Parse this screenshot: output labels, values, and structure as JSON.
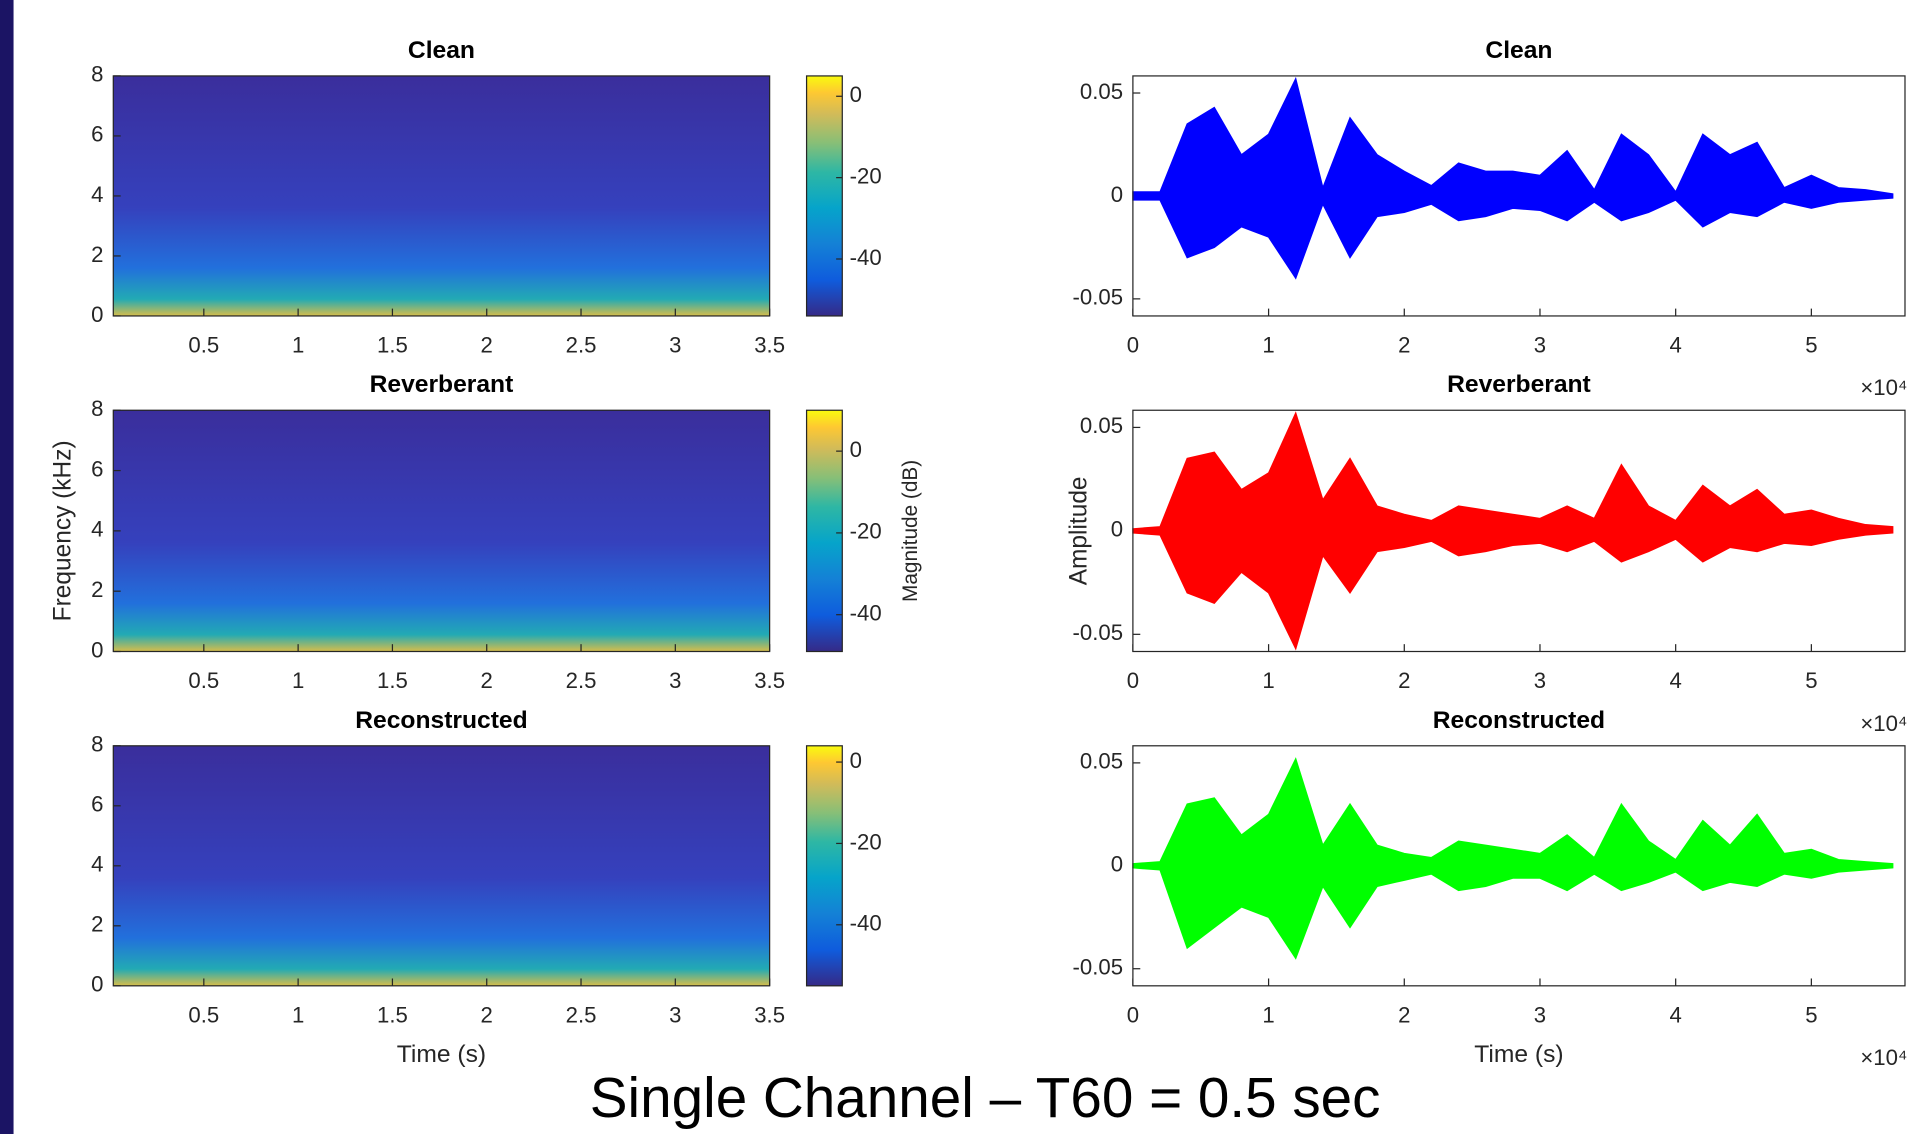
{
  "title": "Single Channel – T60 = 0.5 sec",
  "chart_data": [
    {
      "type": "spectrogram",
      "title": "Clean",
      "xlim": [
        0.02,
        3.5
      ],
      "xticks": [
        0.5,
        1,
        1.5,
        2,
        2.5,
        3,
        3.5
      ],
      "ylim": [
        0,
        8
      ],
      "yticks": [
        0,
        2,
        4,
        6,
        8
      ],
      "clim": [
        -54,
        5
      ],
      "cticks": [
        0,
        -20,
        -40
      ]
    },
    {
      "type": "spectrogram",
      "title": "Reverberant",
      "ylabel": "Frequency (kHz)",
      "clabel": "Magnitude (dB)",
      "xlim": [
        0.02,
        3.5
      ],
      "xticks": [
        0.5,
        1,
        1.5,
        2,
        2.5,
        3,
        3.5
      ],
      "ylim": [
        0,
        8
      ],
      "yticks": [
        0,
        2,
        4,
        6,
        8
      ],
      "clim": [
        -49,
        10
      ],
      "cticks": [
        0,
        -20,
        -40
      ]
    },
    {
      "type": "spectrogram",
      "title": "Reconstructed",
      "xlabel": "Time (s)",
      "xlim": [
        0.02,
        3.5
      ],
      "xticks": [
        0.5,
        1,
        1.5,
        2,
        2.5,
        3,
        3.5
      ],
      "ylim": [
        0,
        8
      ],
      "yticks": [
        0,
        2,
        4,
        6,
        8
      ],
      "clim": [
        -55,
        4
      ],
      "cticks": [
        0,
        -20,
        -40
      ]
    },
    {
      "type": "waveform",
      "title": "Clean",
      "color": "#0000ff",
      "x_multiplier": "×10⁴",
      "xlim": [
        0,
        56900
      ],
      "xticks": [
        0,
        {
          "value": 10000,
          "label": "1"
        },
        {
          "value": 20000,
          "label": "2"
        },
        {
          "value": 30000,
          "label": "3"
        },
        {
          "value": 40000,
          "label": "4"
        },
        {
          "value": 50000,
          "label": "5"
        }
      ],
      "ylim": [
        -0.0583,
        0.0583
      ],
      "yticks": [
        -0.05,
        0,
        0.05
      ],
      "x": [
        0,
        2000,
        4000,
        6000,
        8000,
        10000,
        12000,
        14000,
        16000,
        18000,
        20000,
        22000,
        24000,
        26000,
        28000,
        30000,
        32000,
        34000,
        36000,
        38000,
        40000,
        42000,
        44000,
        46000,
        48000,
        50000,
        52000,
        54000,
        56000
      ],
      "upper": [
        0.002,
        0.002,
        0.035,
        0.043,
        0.02,
        0.03,
        0.057,
        0.004,
        0.038,
        0.02,
        0.012,
        0.005,
        0.016,
        0.012,
        0.012,
        0.01,
        0.022,
        0.003,
        0.03,
        0.02,
        0.002,
        0.03,
        0.02,
        0.026,
        0.004,
        0.01,
        0.004,
        0.003,
        0.001
      ],
      "lower": [
        -0.002,
        -0.002,
        -0.03,
        -0.025,
        -0.015,
        -0.02,
        -0.04,
        -0.004,
        -0.03,
        -0.01,
        -0.008,
        -0.004,
        -0.012,
        -0.01,
        -0.006,
        -0.007,
        -0.012,
        -0.003,
        -0.012,
        -0.008,
        -0.002,
        -0.015,
        -0.008,
        -0.01,
        -0.003,
        -0.006,
        -0.003,
        -0.002,
        -0.001
      ]
    },
    {
      "type": "waveform",
      "title": "Reverberant",
      "ylabel": "Amplitude",
      "color": "#ff0000",
      "x_multiplier": "×10⁴",
      "xlim": [
        0,
        56900
      ],
      "xticks": [
        0,
        {
          "value": 10000,
          "label": "1"
        },
        {
          "value": 20000,
          "label": "2"
        },
        {
          "value": 30000,
          "label": "3"
        },
        {
          "value": 40000,
          "label": "4"
        },
        {
          "value": 50000,
          "label": "5"
        }
      ],
      "ylim": [
        -0.0583,
        0.0583
      ],
      "yticks": [
        -0.05,
        0,
        0.05
      ],
      "x": [
        0,
        2000,
        4000,
        6000,
        8000,
        10000,
        12000,
        14000,
        16000,
        18000,
        20000,
        22000,
        24000,
        26000,
        28000,
        30000,
        32000,
        34000,
        36000,
        38000,
        40000,
        42000,
        44000,
        46000,
        48000,
        50000,
        52000,
        54000,
        56000
      ],
      "upper": [
        0.001,
        0.002,
        0.035,
        0.038,
        0.02,
        0.028,
        0.057,
        0.015,
        0.035,
        0.012,
        0.008,
        0.005,
        0.012,
        0.01,
        0.008,
        0.006,
        0.012,
        0.006,
        0.032,
        0.012,
        0.005,
        0.022,
        0.012,
        0.02,
        0.008,
        0.01,
        0.006,
        0.003,
        0.002
      ],
      "lower": [
        -0.001,
        -0.002,
        -0.03,
        -0.035,
        -0.02,
        -0.03,
        -0.057,
        -0.012,
        -0.03,
        -0.01,
        -0.008,
        -0.005,
        -0.012,
        -0.01,
        -0.007,
        -0.006,
        -0.01,
        -0.005,
        -0.015,
        -0.01,
        -0.004,
        -0.015,
        -0.008,
        -0.01,
        -0.006,
        -0.007,
        -0.004,
        -0.002,
        -0.001
      ]
    },
    {
      "type": "waveform",
      "title": "Reconstructed",
      "xlabel": "Time (s)",
      "color": "#00ff00",
      "x_multiplier": "×10⁴",
      "xlim": [
        0,
        56900
      ],
      "xticks": [
        0,
        {
          "value": 10000,
          "label": "1"
        },
        {
          "value": 20000,
          "label": "2"
        },
        {
          "value": 30000,
          "label": "3"
        },
        {
          "value": 40000,
          "label": "4"
        },
        {
          "value": 50000,
          "label": "5"
        }
      ],
      "ylim": [
        -0.0583,
        0.0583
      ],
      "yticks": [
        -0.05,
        0,
        0.05
      ],
      "x": [
        0,
        2000,
        4000,
        6000,
        8000,
        10000,
        12000,
        14000,
        16000,
        18000,
        20000,
        22000,
        24000,
        26000,
        28000,
        30000,
        32000,
        34000,
        36000,
        38000,
        40000,
        42000,
        44000,
        46000,
        48000,
        50000,
        52000,
        54000,
        56000
      ],
      "upper": [
        0.001,
        0.002,
        0.03,
        0.033,
        0.015,
        0.025,
        0.052,
        0.01,
        0.03,
        0.01,
        0.006,
        0.004,
        0.012,
        0.01,
        0.008,
        0.006,
        0.015,
        0.004,
        0.03,
        0.012,
        0.003,
        0.022,
        0.01,
        0.025,
        0.006,
        0.008,
        0.003,
        0.002,
        0.001
      ],
      "lower": [
        -0.001,
        -0.002,
        -0.04,
        -0.03,
        -0.02,
        -0.025,
        -0.045,
        -0.01,
        -0.03,
        -0.01,
        -0.007,
        -0.004,
        -0.012,
        -0.01,
        -0.006,
        -0.006,
        -0.012,
        -0.004,
        -0.012,
        -0.008,
        -0.003,
        -0.012,
        -0.008,
        -0.01,
        -0.004,
        -0.006,
        -0.003,
        -0.002,
        -0.001
      ]
    }
  ]
}
